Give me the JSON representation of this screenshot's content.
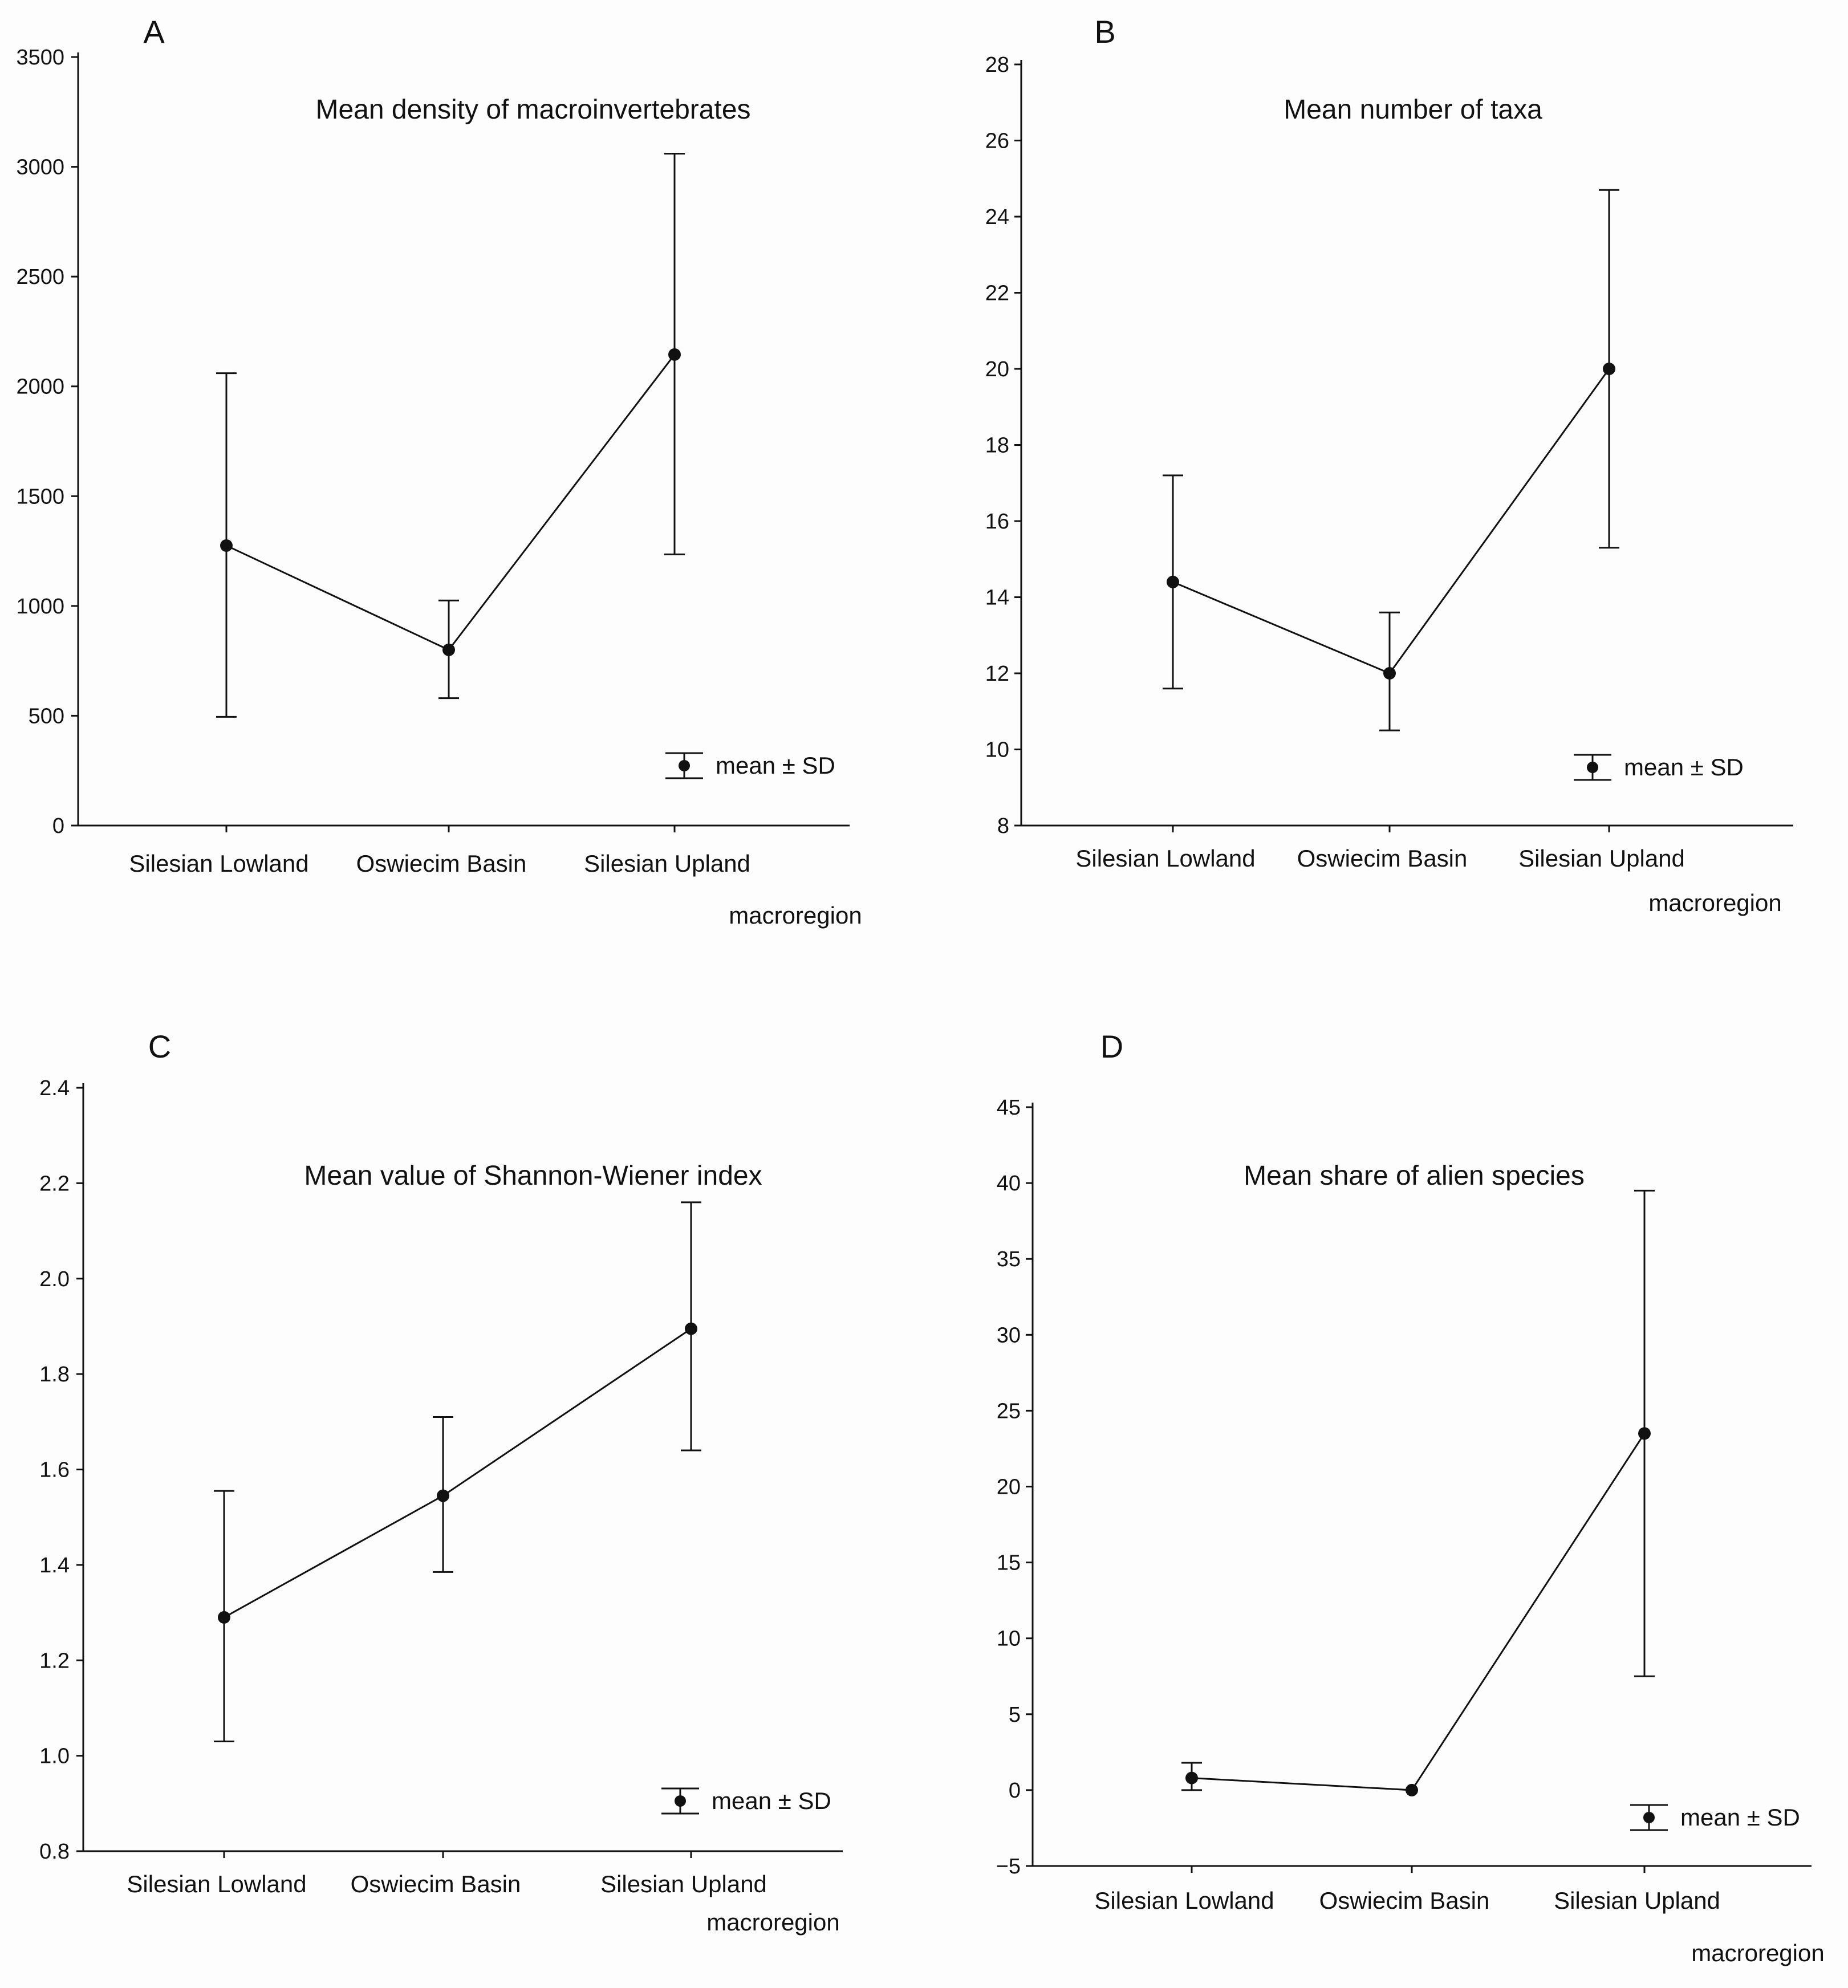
{
  "chart_data": [
    {
      "panel": "A",
      "type": "line",
      "title": "Mean density of macroinvertebrates",
      "xlabel": "macroregion",
      "ylabel": "",
      "categories": [
        "Silesian Lowland",
        "Oswiecim Basin",
        "Silesian Upland"
      ],
      "series": [
        {
          "name": "mean",
          "values": [
            1275,
            800,
            2145
          ],
          "sd_low": [
            495,
            580,
            1235
          ],
          "sd_high": [
            2060,
            1025,
            3060
          ]
        }
      ],
      "ylim": [
        0,
        3500
      ],
      "yticks": [
        0,
        500,
        1000,
        1500,
        2000,
        2500,
        3000,
        3500
      ],
      "ytick_labels": [
        "0",
        "500",
        "1000",
        "1500",
        "2000",
        "2500",
        "3000",
        "3500"
      ],
      "legend": "mean ± SD",
      "legend_position": "bottom-right"
    },
    {
      "panel": "B",
      "type": "line",
      "title": "Mean number of taxa",
      "xlabel": "macroregion",
      "ylabel": "",
      "categories": [
        "Silesian Lowland",
        "Oswiecim Basin",
        "Silesian Upland"
      ],
      "series": [
        {
          "name": "mean",
          "values": [
            14.4,
            12.0,
            20.0
          ],
          "sd_low": [
            11.6,
            10.5,
            15.3
          ],
          "sd_high": [
            17.2,
            13.6,
            24.7
          ]
        }
      ],
      "ylim": [
        8,
        28
      ],
      "yticks": [
        8,
        10,
        12,
        14,
        16,
        18,
        20,
        22,
        24,
        26,
        28
      ],
      "ytick_labels": [
        "8",
        "10",
        "12",
        "14",
        "16",
        "18",
        "20",
        "22",
        "24",
        "26",
        "28"
      ],
      "legend": "mean ± SD",
      "legend_position": "bottom-right"
    },
    {
      "panel": "C",
      "type": "line",
      "title": "Mean value of Shannon-Wiener index",
      "xlabel": "macroregion",
      "ylabel": "",
      "categories": [
        "Silesian Lowland",
        "Oswiecim Basin",
        "Silesian Upland"
      ],
      "series": [
        {
          "name": "mean",
          "values": [
            1.29,
            1.545,
            1.895
          ],
          "sd_low": [
            1.03,
            1.385,
            1.64
          ],
          "sd_high": [
            1.555,
            1.71,
            2.16
          ]
        }
      ],
      "ylim": [
        0.8,
        2.4
      ],
      "yticks": [
        0.8,
        1.0,
        1.2,
        1.4,
        1.6,
        1.8,
        2.0,
        2.2,
        2.4
      ],
      "ytick_labels": [
        "0.8",
        "1.0",
        "1.2",
        "1.4",
        "1.6",
        "1.8",
        "2.0",
        "2.2",
        "2.4"
      ],
      "legend": "mean ± SD",
      "legend_position": "bottom-right"
    },
    {
      "panel": "D",
      "type": "line",
      "title": "Mean share of alien species",
      "xlabel": "macroregion",
      "ylabel": "",
      "categories": [
        "Silesian Lowland",
        "Oswiecim Basin",
        "Silesian Upland"
      ],
      "series": [
        {
          "name": "mean",
          "values": [
            0.8,
            0.0,
            23.5
          ],
          "sd_low": [
            0.0,
            0.0,
            7.5
          ],
          "sd_high": [
            1.8,
            0.0,
            39.5
          ]
        }
      ],
      "ylim": [
        -5,
        45
      ],
      "yticks": [
        -5,
        0,
        5,
        10,
        15,
        20,
        25,
        30,
        35,
        40,
        45
      ],
      "ytick_labels": [
        "−5",
        "0",
        "5",
        "10",
        "15",
        "20",
        "25",
        "30",
        "35",
        "40",
        "45"
      ],
      "legend": "mean ± SD",
      "legend_position": "bottom-right"
    }
  ]
}
